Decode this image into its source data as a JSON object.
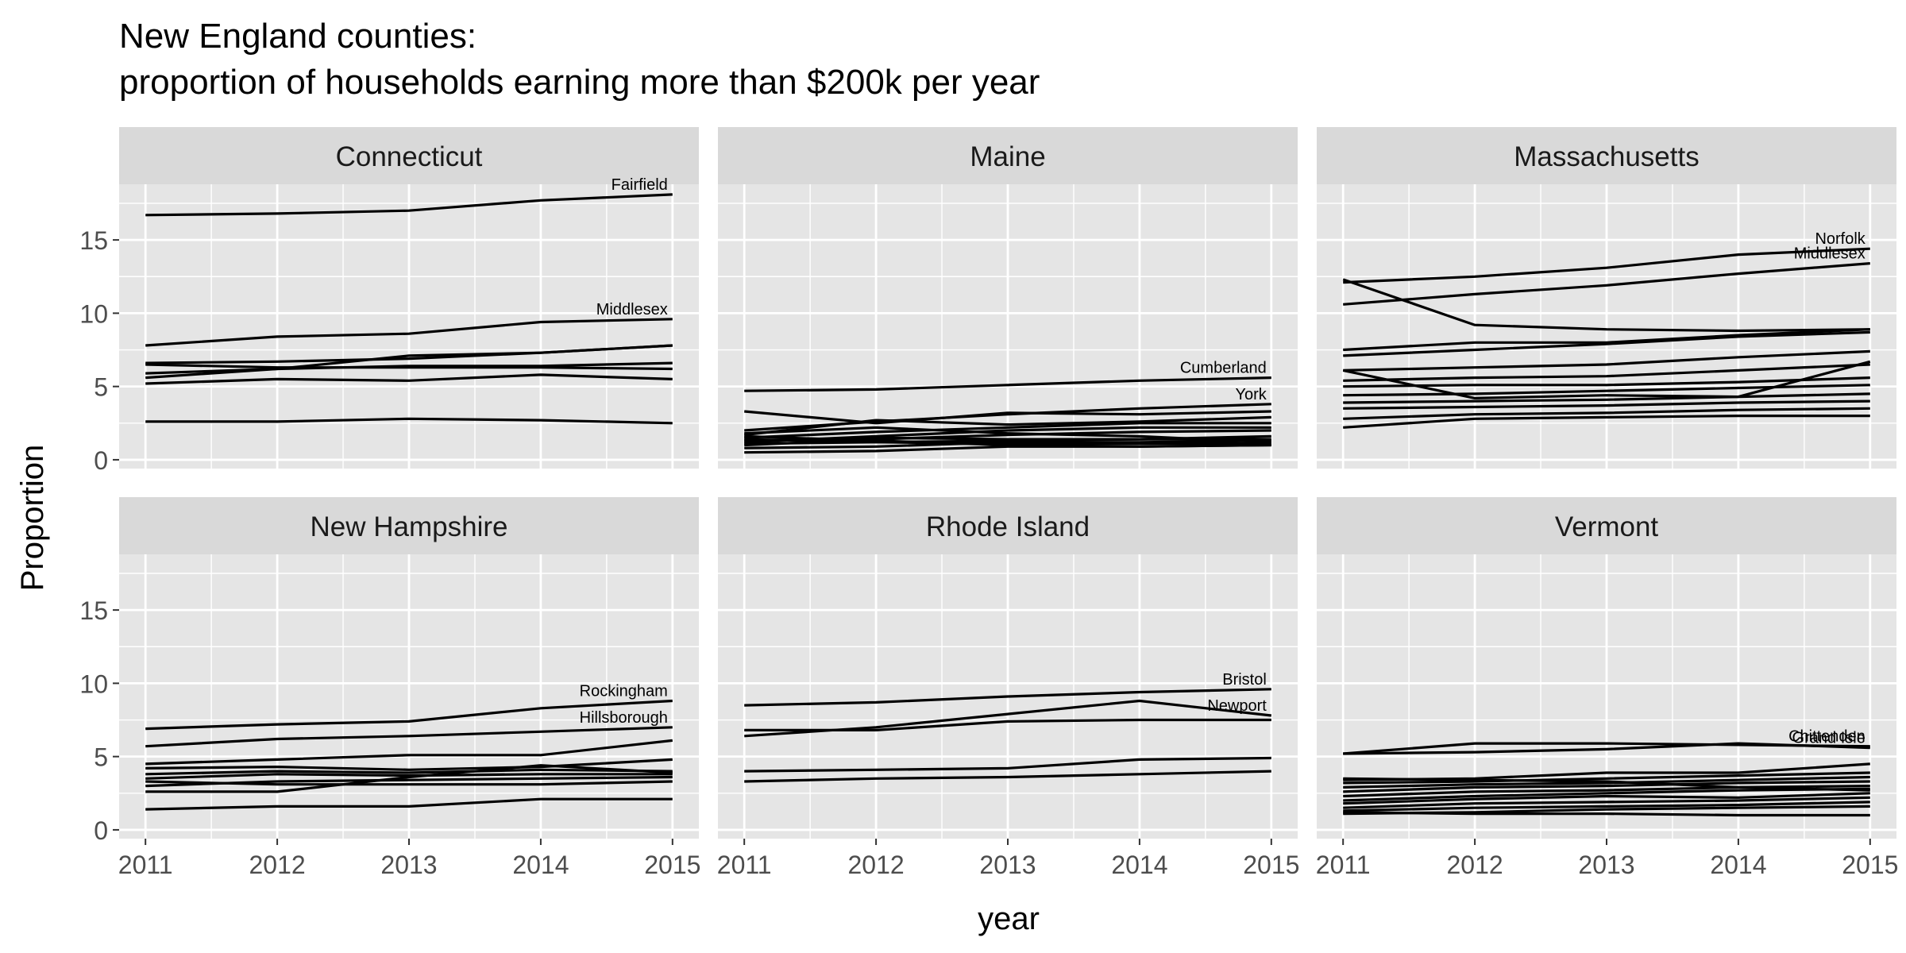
{
  "chart_data": {
    "type": "line",
    "title": "New England counties:",
    "subtitle": "proportion of households earning more than $200k per year",
    "xlabel": "year",
    "ylabel": "Proportion",
    "x": [
      2011,
      2012,
      2013,
      2014,
      2015
    ],
    "xticks": [
      "2011",
      "2012",
      "2013",
      "2014",
      "2015"
    ],
    "yticks": [
      "0",
      "5",
      "10",
      "15"
    ],
    "ylim": [
      -0.6,
      18.8
    ],
    "xlim": [
      2010.8,
      2015.2
    ],
    "grid": true,
    "legend": "none",
    "colors": {
      "panel_bg": "#e5e5e5",
      "strip_bg": "#d9d9d9",
      "grid": "#ffffff",
      "line": "#000000",
      "tick_text": "#4d4d4d"
    },
    "panels": [
      {
        "name": "Connecticut",
        "series": [
          {
            "label": "Fairfield",
            "values": [
              16.7,
              16.8,
              17.0,
              17.7,
              18.1
            ]
          },
          {
            "label": "Middlesex",
            "values": [
              7.8,
              8.4,
              8.6,
              9.4,
              9.6
            ]
          },
          {
            "values": [
              6.6,
              6.7,
              6.9,
              7.3,
              7.8
            ]
          },
          {
            "values": [
              5.6,
              6.2,
              7.1,
              7.3,
              7.8
            ]
          },
          {
            "values": [
              5.9,
              6.2,
              6.4,
              6.4,
              6.6
            ]
          },
          {
            "values": [
              5.2,
              5.5,
              5.4,
              5.8,
              5.5
            ]
          },
          {
            "values": [
              6.5,
              6.3,
              6.3,
              6.3,
              6.2
            ]
          },
          {
            "values": [
              2.6,
              2.6,
              2.8,
              2.7,
              2.5
            ]
          }
        ]
      },
      {
        "name": "Maine",
        "series": [
          {
            "label": "Cumberland",
            "values": [
              4.7,
              4.8,
              5.1,
              5.4,
              5.6
            ]
          },
          {
            "label": "York",
            "values": [
              2.0,
              2.6,
              3.1,
              3.5,
              3.8
            ]
          },
          {
            "values": [
              3.3,
              2.5,
              3.2,
              3.1,
              3.3
            ]
          },
          {
            "values": [
              1.7,
              2.7,
              2.4,
              2.6,
              2.9
            ]
          },
          {
            "values": [
              1.5,
              1.9,
              2.2,
              2.5,
              2.5
            ]
          },
          {
            "values": [
              1.2,
              1.6,
              2.0,
              2.2,
              2.2
            ]
          },
          {
            "values": [
              1.0,
              1.4,
              1.7,
              1.9,
              2.0
            ]
          },
          {
            "values": [
              1.3,
              1.5,
              1.4,
              1.4,
              1.6
            ]
          },
          {
            "values": [
              1.1,
              1.2,
              1.3,
              1.4,
              1.4
            ]
          },
          {
            "values": [
              0.8,
              0.9,
              1.2,
              1.2,
              1.3
            ]
          },
          {
            "values": [
              1.4,
              1.2,
              1.1,
              1.1,
              1.1
            ]
          },
          {
            "values": [
              1.6,
              1.3,
              1.0,
              0.9,
              1.0
            ]
          },
          {
            "values": [
              0.5,
              0.6,
              0.9,
              0.9,
              1.0
            ]
          },
          {
            "values": [
              1.8,
              2.2,
              1.8,
              1.6,
              1.2
            ]
          }
        ]
      },
      {
        "name": "Massachusetts",
        "series": [
          {
            "label": "Norfolk",
            "values": [
              12.1,
              12.5,
              13.1,
              14.0,
              14.4
            ]
          },
          {
            "label": "Middlesex",
            "values": [
              10.6,
              11.3,
              11.9,
              12.7,
              13.4
            ]
          },
          {
            "values": [
              12.3,
              9.2,
              8.9,
              8.8,
              8.9
            ]
          },
          {
            "values": [
              7.5,
              8.0,
              8.0,
              8.5,
              8.9
            ]
          },
          {
            "values": [
              7.1,
              7.5,
              7.9,
              8.4,
              8.7
            ]
          },
          {
            "values": [
              6.1,
              6.3,
              6.5,
              7.0,
              7.4
            ]
          },
          {
            "values": [
              5.4,
              5.6,
              5.7,
              6.1,
              6.5
            ]
          },
          {
            "values": [
              6.1,
              4.2,
              4.4,
              4.3,
              6.7
            ]
          },
          {
            "values": [
              5.0,
              5.1,
              5.1,
              5.3,
              5.6
            ]
          },
          {
            "values": [
              4.4,
              4.5,
              4.7,
              4.9,
              5.1
            ]
          },
          {
            "values": [
              3.9,
              4.0,
              4.1,
              4.3,
              4.5
            ]
          },
          {
            "values": [
              3.5,
              3.6,
              3.7,
              3.9,
              4.0
            ]
          },
          {
            "values": [
              2.8,
              3.1,
              3.2,
              3.4,
              3.5
            ]
          },
          {
            "values": [
              2.2,
              2.8,
              2.9,
              3.0,
              3.0
            ]
          }
        ]
      },
      {
        "name": "New Hampshire",
        "series": [
          {
            "label": "Rockingham",
            "values": [
              6.9,
              7.2,
              7.4,
              8.3,
              8.8
            ]
          },
          {
            "label": "Hillsborough",
            "values": [
              5.7,
              6.2,
              6.4,
              6.7,
              7.0
            ]
          },
          {
            "values": [
              4.5,
              4.8,
              5.1,
              5.1,
              6.1
            ]
          },
          {
            "values": [
              4.2,
              4.3,
              4.1,
              4.3,
              4.8
            ]
          },
          {
            "values": [
              3.8,
              4.0,
              3.9,
              4.1,
              4.0
            ]
          },
          {
            "values": [
              3.5,
              3.8,
              3.7,
              3.8,
              3.8
            ]
          },
          {
            "values": [
              3.0,
              3.3,
              3.4,
              3.5,
              3.6
            ]
          },
          {
            "values": [
              3.3,
              3.1,
              3.1,
              3.1,
              3.3
            ]
          },
          {
            "values": [
              2.6,
              2.6,
              3.6,
              4.4,
              3.9
            ]
          },
          {
            "values": [
              1.4,
              1.6,
              1.6,
              2.1,
              2.1
            ]
          }
        ]
      },
      {
        "name": "Rhode Island",
        "series": [
          {
            "label": "Bristol",
            "values": [
              8.5,
              8.7,
              9.1,
              9.4,
              9.6
            ]
          },
          {
            "label": "Newport",
            "values": [
              6.4,
              7.0,
              7.9,
              8.8,
              7.8
            ]
          },
          {
            "values": [
              6.8,
              6.8,
              7.4,
              7.5,
              7.5
            ]
          },
          {
            "values": [
              4.0,
              4.1,
              4.2,
              4.8,
              4.9
            ]
          },
          {
            "values": [
              3.3,
              3.5,
              3.6,
              3.8,
              4.0
            ]
          }
        ]
      },
      {
        "name": "Vermont",
        "series": [
          {
            "label": "Chittenden",
            "values": [
              5.2,
              5.9,
              5.9,
              5.8,
              5.7
            ]
          },
          {
            "label": "Grand Isle",
            "values": [
              5.2,
              5.3,
              5.5,
              5.9,
              5.6
            ]
          },
          {
            "values": [
              3.4,
              3.5,
              3.9,
              3.9,
              4.5
            ]
          },
          {
            "values": [
              3.2,
              3.3,
              3.5,
              3.7,
              3.9
            ]
          },
          {
            "values": [
              2.9,
              3.1,
              3.2,
              3.4,
              3.6
            ]
          },
          {
            "values": [
              2.6,
              2.9,
              3.0,
              3.2,
              3.3
            ]
          },
          {
            "values": [
              2.3,
              2.6,
              2.7,
              2.9,
              3.0
            ]
          },
          {
            "values": [
              2.0,
              2.3,
              2.5,
              2.7,
              2.8
            ]
          },
          {
            "values": [
              1.8,
              2.1,
              2.3,
              2.2,
              2.5
            ]
          },
          {
            "values": [
              1.5,
              1.8,
              1.9,
              2.0,
              2.2
            ]
          },
          {
            "values": [
              1.3,
              1.5,
              1.6,
              1.7,
              1.9
            ]
          },
          {
            "values": [
              1.1,
              1.2,
              1.4,
              1.5,
              1.6
            ]
          },
          {
            "values": [
              1.2,
              1.1,
              1.1,
              1.0,
              1.0
            ]
          },
          {
            "values": [
              3.5,
              3.4,
              3.3,
              2.9,
              2.7
            ]
          }
        ]
      }
    ]
  }
}
